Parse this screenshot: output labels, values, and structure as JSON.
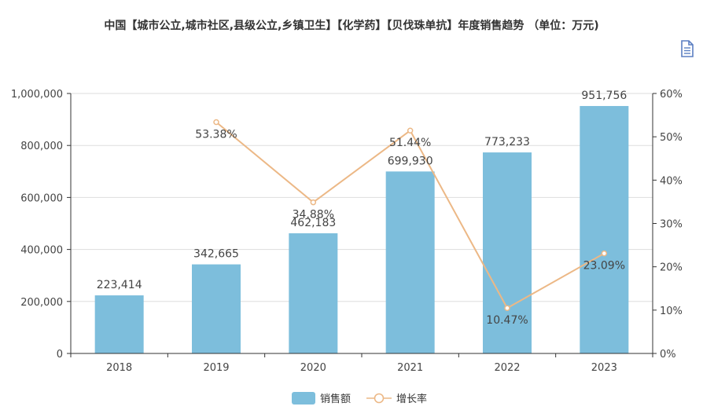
{
  "title": "中国【城市公立,城市社区,县级公立,乡镇卫生】【化学药】【贝伐珠单抗】年度销售趋势 （单位：万元)",
  "toolbar": {
    "icon": "document-icon"
  },
  "legend": {
    "bar_label": "销售额",
    "line_label": "增长率"
  },
  "colors": {
    "bar": "#7dbedc",
    "line": "#ecb886",
    "axis": "#333333",
    "grid": "#dddddd"
  },
  "chart_data": {
    "type": "bar+line",
    "categories": [
      "2018",
      "2019",
      "2020",
      "2021",
      "2022",
      "2023"
    ],
    "series": [
      {
        "name": "销售额",
        "type": "bar",
        "axis": "left",
        "values": [
          223414,
          342665,
          462183,
          699930,
          773233,
          951756
        ],
        "labels": [
          "223,414",
          "342,665",
          "462,183",
          "699,930",
          "773,233",
          "951,756"
        ]
      },
      {
        "name": "增长率",
        "type": "line",
        "axis": "right",
        "values": [
          null,
          53.38,
          34.88,
          51.44,
          10.47,
          23.09
        ],
        "labels": [
          "",
          "53.38%",
          "34.88%",
          "51.44%",
          "10.47%",
          "23.09%"
        ]
      }
    ],
    "y_left": {
      "min": 0,
      "max": 1000000,
      "ticks": [
        "0",
        "200,000",
        "400,000",
        "600,000",
        "800,000",
        "1,000,000"
      ]
    },
    "y_right": {
      "min": 0,
      "max": 60,
      "ticks": [
        "0%",
        "10%",
        "20%",
        "30%",
        "40%",
        "50%",
        "60%"
      ]
    },
    "grid": true,
    "legend_position": "bottom-center"
  }
}
